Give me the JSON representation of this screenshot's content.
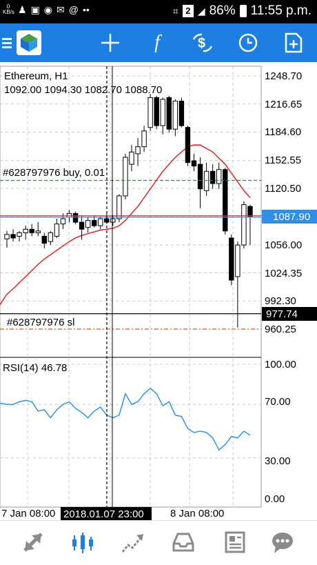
{
  "status_bar": {
    "data_rate": "0",
    "data_rate_unit": "KB/s",
    "sim_slot": "2",
    "battery": "86%",
    "time": "11:55 p.m."
  },
  "toolbar": {
    "icons": [
      "menu-icon",
      "metatrader-logo-icon",
      "crosshair-icon",
      "function-icon",
      "symbols-icon",
      "timeframe-clock-icon",
      "new-order-icon"
    ]
  },
  "chart": {
    "symbol": "Ethereum, H1",
    "ohlc": "1092.00 1094.30 1082.70 1088.70",
    "price_axis_labels": [
      "1248.70",
      "1216.65",
      "1184.60",
      "1152.55",
      "1120.50",
      "1056.00",
      "1024.35",
      "992.30",
      "960.25"
    ],
    "current_price_label": "1087.90",
    "crosshair_price_label": "977.74",
    "buy_order_label": "#628797976 buy, 0.01",
    "sl_order_label": "#628797976 sl",
    "indicator": {
      "label": "RSI(14) 46.78",
      "levels": [
        "100.00",
        "70.00",
        "30.00",
        "0.00"
      ]
    },
    "time_axis_labels": [
      "7 Jan 08:00",
      "8 Jan 08:00"
    ],
    "crosshair_time_label": "2018.01.07 23:00",
    "colors": {
      "bull_candle": "#ffffff",
      "bear_candle": "#000000",
      "moving_average": "#e8161a",
      "rsi_line": "#1e90e6",
      "buy_line": "#1a9a1a",
      "sl_line": "#e8551a",
      "current_price": "#2d8fe6",
      "accent": "#1d7fe2"
    }
  },
  "chart_data": {
    "type": "candlestick",
    "title": "Ethereum, H1",
    "ylim": [
      940,
      1262
    ],
    "candles": [
      {
        "o": 1063,
        "h": 1072,
        "l": 1053,
        "c": 1068
      },
      {
        "o": 1068,
        "h": 1074,
        "l": 1060,
        "c": 1064
      },
      {
        "o": 1066,
        "h": 1072,
        "l": 1060,
        "c": 1070
      },
      {
        "o": 1070,
        "h": 1078,
        "l": 1062,
        "c": 1074
      },
      {
        "o": 1074,
        "h": 1080,
        "l": 1066,
        "c": 1070
      },
      {
        "o": 1070,
        "h": 1082,
        "l": 1066,
        "c": 1072
      },
      {
        "o": 1066,
        "h": 1070,
        "l": 1052,
        "c": 1058
      },
      {
        "o": 1060,
        "h": 1072,
        "l": 1056,
        "c": 1070
      },
      {
        "o": 1066,
        "h": 1086,
        "l": 1064,
        "c": 1080
      },
      {
        "o": 1080,
        "h": 1092,
        "l": 1074,
        "c": 1086
      },
      {
        "o": 1088,
        "h": 1096,
        "l": 1082,
        "c": 1092
      },
      {
        "o": 1092,
        "h": 1094,
        "l": 1080,
        "c": 1082
      },
      {
        "o": 1082,
        "h": 1090,
        "l": 1062,
        "c": 1074
      },
      {
        "o": 1076,
        "h": 1088,
        "l": 1070,
        "c": 1084
      },
      {
        "o": 1084,
        "h": 1090,
        "l": 1076,
        "c": 1078
      },
      {
        "o": 1078,
        "h": 1088,
        "l": 1074,
        "c": 1086
      },
      {
        "o": 1086,
        "h": 1092,
        "l": 1080,
        "c": 1082
      },
      {
        "o": 1082,
        "h": 1090,
        "l": 1078,
        "c": 1086
      },
      {
        "o": 1086,
        "h": 1114,
        "l": 1082,
        "c": 1112
      },
      {
        "o": 1112,
        "h": 1160,
        "l": 1108,
        "c": 1156
      },
      {
        "o": 1148,
        "h": 1170,
        "l": 1140,
        "c": 1162
      },
      {
        "o": 1160,
        "h": 1178,
        "l": 1146,
        "c": 1168
      },
      {
        "o": 1168,
        "h": 1192,
        "l": 1162,
        "c": 1186
      },
      {
        "o": 1190,
        "h": 1228,
        "l": 1186,
        "c": 1224
      },
      {
        "o": 1224,
        "h": 1226,
        "l": 1188,
        "c": 1192
      },
      {
        "o": 1192,
        "h": 1224,
        "l": 1182,
        "c": 1222
      },
      {
        "o": 1224,
        "h": 1226,
        "l": 1184,
        "c": 1188
      },
      {
        "o": 1188,
        "h": 1222,
        "l": 1180,
        "c": 1220
      },
      {
        "o": 1220,
        "h": 1224,
        "l": 1190,
        "c": 1192
      },
      {
        "o": 1190,
        "h": 1192,
        "l": 1146,
        "c": 1150
      },
      {
        "o": 1152,
        "h": 1160,
        "l": 1140,
        "c": 1146
      },
      {
        "o": 1148,
        "h": 1156,
        "l": 1098,
        "c": 1120
      },
      {
        "o": 1118,
        "h": 1150,
        "l": 1112,
        "c": 1140
      },
      {
        "o": 1140,
        "h": 1148,
        "l": 1120,
        "c": 1126
      },
      {
        "o": 1126,
        "h": 1150,
        "l": 1120,
        "c": 1142
      },
      {
        "o": 1142,
        "h": 1144,
        "l": 1068,
        "c": 1072
      },
      {
        "o": 1064,
        "h": 1068,
        "l": 1010,
        "c": 1016
      },
      {
        "o": 1020,
        "h": 1060,
        "l": 962,
        "c": 1056
      },
      {
        "o": 1056,
        "h": 1106,
        "l": 1052,
        "c": 1102
      },
      {
        "o": 1100,
        "h": 1102,
        "l": 1056,
        "c": 1088
      }
    ],
    "ma": [
      1000,
      1006,
      1013,
      1020,
      1027,
      1034,
      1040,
      1045,
      1050,
      1055,
      1060,
      1064,
      1067,
      1069,
      1071,
      1073,
      1074,
      1075,
      1078,
      1084,
      1092,
      1100,
      1110,
      1120,
      1130,
      1140,
      1148,
      1156,
      1162,
      1168,
      1170,
      1170,
      1166,
      1162,
      1155,
      1148,
      1138,
      1128,
      1118,
      1110
    ],
    "rsi": [
      70,
      70,
      72,
      73,
      72,
      65,
      66,
      60,
      66,
      70,
      72,
      67,
      64,
      60,
      65,
      68,
      62,
      60,
      62,
      78,
      70,
      72,
      78,
      82,
      78,
      69,
      72,
      62,
      61,
      52,
      49,
      50,
      49,
      45,
      36,
      40,
      46,
      45,
      50,
      47
    ],
    "buy_price": 1129.6,
    "sl_price": 960.25,
    "current_price": 1087.9,
    "crosshair_price": 977.74
  },
  "bottom_nav": {
    "icons": [
      "quotes-icon",
      "chart-icon",
      "trade-icon",
      "history-icon",
      "news-icon",
      "chat-icon"
    ]
  }
}
